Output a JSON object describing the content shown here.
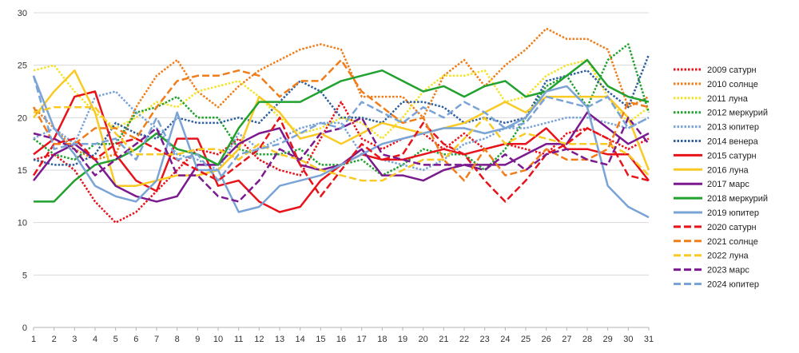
{
  "chart_data": {
    "type": "line",
    "title": "",
    "xlabel": "",
    "ylabel": "",
    "x": [
      1,
      2,
      3,
      4,
      5,
      6,
      7,
      8,
      9,
      10,
      11,
      12,
      13,
      14,
      15,
      16,
      17,
      18,
      19,
      20,
      21,
      22,
      23,
      24,
      25,
      26,
      27,
      28,
      29,
      30,
      31
    ],
    "ylim": [
      0,
      30
    ],
    "yticks": [
      0,
      5,
      10,
      15,
      20,
      25,
      30
    ],
    "grid": "horizontal",
    "legend_position": "right",
    "series": [
      {
        "name": "2009 сатурн",
        "color": "#e8131a",
        "dash": "dotted",
        "values": [
          16,
          16.5,
          15,
          12,
          10,
          11,
          13,
          15,
          17,
          16.5,
          18,
          16,
          15,
          14.5,
          18,
          21.5,
          18,
          17,
          18,
          18.5,
          17,
          18.5,
          17,
          17.5,
          17,
          16.5,
          18.5,
          19,
          18,
          17,
          18
        ]
      },
      {
        "name": "2010 солнце",
        "color": "#ef7d1a",
        "dash": "dotted",
        "values": [
          21,
          19,
          17,
          16,
          16.5,
          21,
          24,
          25.5,
          22.5,
          21,
          23,
          24.5,
          25.5,
          26.5,
          27,
          26.5,
          22,
          22,
          22,
          20,
          24,
          25.5,
          23,
          25,
          26.5,
          28.5,
          27.5,
          27.5,
          26.5,
          21,
          22
        ]
      },
      {
        "name": "2011 луна",
        "color": "#f4e32a",
        "dash": "dotted",
        "values": [
          24.5,
          25,
          22.5,
          20.5,
          19,
          20,
          21.5,
          21,
          22.5,
          23,
          23.5,
          22,
          20,
          18.5,
          19,
          20,
          19.5,
          18,
          20,
          22.5,
          24,
          24,
          24.5,
          21.5,
          22,
          24,
          25,
          25.5,
          22,
          19.5,
          21
        ]
      },
      {
        "name": "2012 меркурий",
        "color": "#21a12e",
        "dash": "dotted",
        "values": [
          18,
          16.5,
          16,
          17.5,
          17.5,
          20.5,
          21,
          22,
          20,
          20,
          17,
          16.5,
          16.5,
          17,
          15.5,
          15.5,
          16,
          14.5,
          15.5,
          17,
          16.5,
          16.5,
          15,
          17,
          20,
          23,
          24,
          21,
          25.5,
          27,
          20.5
        ]
      },
      {
        "name": "2013 юпитер",
        "color": "#7aa3d6",
        "dash": "dotted",
        "values": [
          18,
          19,
          17.5,
          22,
          22.5,
          20.5,
          19,
          16.5,
          16,
          15,
          18.5,
          17,
          18,
          19,
          19.5,
          19.5,
          16.5,
          16,
          15.5,
          15,
          16,
          17.5,
          18,
          19,
          19,
          19.5,
          20,
          20,
          19.5,
          19,
          20
        ]
      },
      {
        "name": "2014 венера",
        "color": "#2f5f9e",
        "dash": "dotted",
        "values": [
          16,
          15.5,
          15.5,
          16.5,
          19.5,
          18.5,
          18,
          20,
          19.5,
          19.5,
          20,
          19.5,
          21.5,
          23.5,
          22.5,
          20,
          20,
          19.5,
          21.5,
          21.5,
          21,
          19.5,
          20,
          19.5,
          20,
          23.5,
          24,
          24.5,
          22.5,
          21,
          26
        ]
      },
      {
        "name": "2015 сатурн",
        "color": "#e8131a",
        "dash": "solid",
        "values": [
          16.5,
          18,
          22,
          22.5,
          16.5,
          14,
          13,
          18,
          18,
          13.5,
          14,
          12,
          11,
          11.5,
          14,
          15.5,
          16.5,
          16,
          16,
          16.5,
          17,
          16.5,
          17,
          17.5,
          17.5,
          19,
          17,
          17,
          16.5,
          16.5,
          14
        ]
      },
      {
        "name": "2016 луна",
        "color": "#f9ca24",
        "dash": "solid",
        "values": [
          20,
          22.5,
          24.5,
          20.5,
          13.5,
          13.5,
          14,
          14.5,
          14.5,
          15,
          17,
          22,
          20.5,
          18,
          18.5,
          17.5,
          18.5,
          19.5,
          19,
          18.5,
          19,
          19.5,
          20.5,
          21.5,
          20.5,
          22,
          22,
          22,
          22,
          20,
          15
        ]
      },
      {
        "name": "2017 марс",
        "color": "#7b1a8e",
        "dash": "solid",
        "values": [
          14,
          16.5,
          17.5,
          16,
          13.5,
          12.5,
          12,
          12.5,
          15.5,
          15.5,
          17.5,
          18.5,
          19,
          15.5,
          15,
          15.5,
          17,
          14.5,
          14.5,
          14,
          15,
          15.5,
          15.5,
          15.5,
          16.5,
          17.5,
          17.5,
          20.5,
          19,
          17.5,
          18.5
        ]
      },
      {
        "name": "2018 меркурий",
        "color": "#21a12e",
        "dash": "solid",
        "values": [
          12,
          12,
          14,
          15.5,
          16,
          17,
          18.5,
          17,
          16.5,
          15.5,
          19,
          21.5,
          21.5,
          21.5,
          22.5,
          23.5,
          24,
          24.5,
          23.5,
          22.5,
          23,
          22,
          23,
          23.5,
          22,
          22.5,
          24,
          25.5,
          23,
          22,
          21.5
        ]
      },
      {
        "name": "2019 юпитер",
        "color": "#7aa3d6",
        "dash": "solid",
        "values": [
          24,
          19,
          16.5,
          13.5,
          12.5,
          12,
          14,
          20.5,
          15,
          15,
          11,
          11.5,
          13.5,
          14,
          14.5,
          15.5,
          16.5,
          17.5,
          18,
          18.5,
          19,
          19,
          18.5,
          19,
          20,
          22.5,
          23,
          21,
          13.5,
          11.5,
          10.5
        ]
      },
      {
        "name": "2020 сатурн",
        "color": "#e8131a",
        "dash": "dashed",
        "values": [
          14.5,
          17.5,
          18,
          16,
          17.5,
          18,
          17,
          16,
          15,
          14,
          15.5,
          17,
          20,
          15.5,
          12.5,
          15,
          17.5,
          16,
          16.5,
          19.5,
          17.5,
          16.5,
          14,
          12,
          14,
          16.5,
          17.5,
          19,
          18,
          14.5,
          14
        ]
      },
      {
        "name": "2021 солнце",
        "color": "#ef7d1a",
        "dash": "dashed",
        "values": [
          21,
          17.5,
          17.5,
          19,
          19,
          18,
          21,
          23.5,
          24,
          24,
          24.5,
          24,
          22,
          23.5,
          23.5,
          25.5,
          22.5,
          21,
          19.5,
          20,
          16,
          14,
          17,
          14.5,
          15,
          17,
          16,
          16,
          17,
          21.5,
          21
        ]
      },
      {
        "name": "2022 луна",
        "color": "#f9ca24",
        "dash": "dashed",
        "values": [
          20.5,
          21,
          21,
          21,
          18.5,
          16.5,
          16.5,
          16.5,
          17,
          17,
          16,
          17.5,
          16.5,
          16,
          15,
          14.5,
          14,
          14,
          15,
          16,
          16,
          18,
          20,
          17.5,
          18.5,
          18,
          17.5,
          17.5,
          17.5,
          16.5,
          14.5
        ]
      },
      {
        "name": "2023 марс",
        "color": "#7b1a8e",
        "dash": "dashed",
        "values": [
          18.5,
          18,
          17,
          14.5,
          16,
          17.5,
          19,
          14.5,
          14.5,
          12.5,
          12,
          14,
          17,
          16,
          18.5,
          19,
          20,
          16.5,
          16,
          15.5,
          15.5,
          15.5,
          15,
          16.5,
          15,
          16.5,
          17,
          16,
          15.5,
          20,
          17.5
        ]
      },
      {
        "name": "2024 юпитер",
        "color": "#7aa3d6",
        "dash": "dashed",
        "values": [
          24,
          17,
          17.5,
          17.5,
          18,
          16,
          20,
          16,
          16.5,
          14,
          16.5,
          17,
          17.5,
          18.5,
          19.5,
          19,
          21.5,
          20.5,
          19.5,
          21,
          20,
          21.5,
          20.5,
          19,
          19.5,
          22,
          21.5,
          21,
          22,
          19,
          20
        ]
      }
    ]
  }
}
